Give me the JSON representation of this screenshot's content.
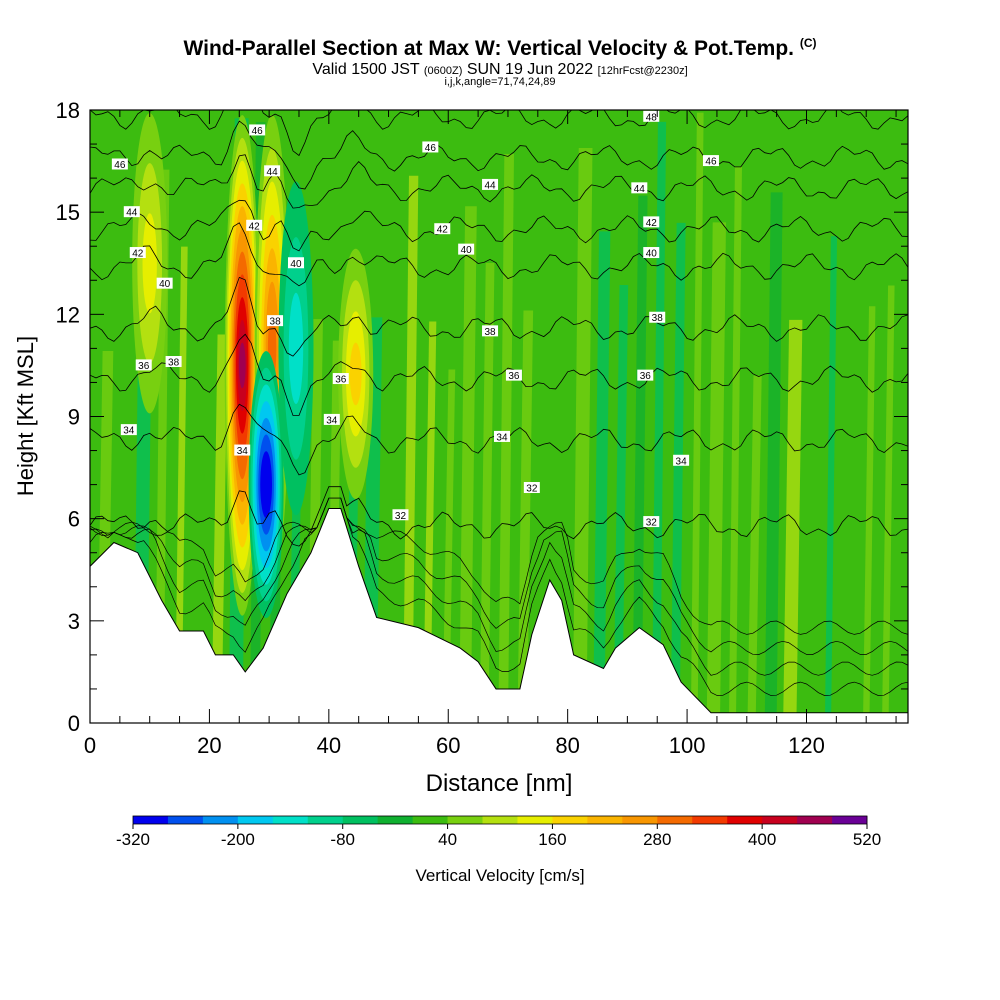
{
  "title": {
    "main": "Wind-Parallel Section at Max W: Vertical Velocity & Pot.Temp.",
    "copyright": "(C)",
    "valid_prefix": "Valid 1500 JST",
    "valid_utc": "(0600Z)",
    "valid_date": "SUN 19 Jun 2022",
    "forecast": "[12hrFcst@2230z]",
    "ijk": "i,j,k,angle=71,74,24,89"
  },
  "colorbar": {
    "label": "Vertical Velocity [cm/s]",
    "colors": [
      "#0000ee",
      "#0050ee",
      "#0090f0",
      "#00c8f0",
      "#00e0c8",
      "#00d08c",
      "#00c060",
      "#10b030",
      "#3cbc10",
      "#78d010",
      "#b4e010",
      "#e6ee00",
      "#fad200",
      "#fab400",
      "#f89600",
      "#f46a00",
      "#f23a00",
      "#e00000",
      "#c8001e",
      "#a00050",
      "#6a0096"
    ],
    "tick_labels": [
      "-320",
      "-200",
      "-80",
      "40",
      "160",
      "280",
      "400",
      "520"
    ]
  },
  "chart_data": {
    "type": "heatmap",
    "title": "Wind-Parallel Section at Max W: Vertical Velocity & Pot.Temp.",
    "xlabel": "Distance [nm]",
    "ylabel": "Height [Kft MSL]",
    "xlim": [
      0,
      137
    ],
    "ylim": [
      0,
      18
    ],
    "x_ticks": [
      0,
      20,
      40,
      60,
      80,
      100,
      120
    ],
    "y_ticks": [
      0,
      3,
      6,
      9,
      12,
      15,
      18
    ],
    "color_scale": {
      "min": -320,
      "max": 520,
      "step": 40,
      "units": "cm/s"
    },
    "terrain": [
      {
        "x": 0,
        "y": 4.6
      },
      {
        "x": 4,
        "y": 5.3
      },
      {
        "x": 8,
        "y": 5.0
      },
      {
        "x": 12,
        "y": 3.6
      },
      {
        "x": 15,
        "y": 2.7
      },
      {
        "x": 19,
        "y": 2.7
      },
      {
        "x": 21,
        "y": 2.0
      },
      {
        "x": 24,
        "y": 2.0
      },
      {
        "x": 26,
        "y": 1.5
      },
      {
        "x": 29,
        "y": 2.2
      },
      {
        "x": 33,
        "y": 3.8
      },
      {
        "x": 37,
        "y": 5.0
      },
      {
        "x": 40,
        "y": 6.3
      },
      {
        "x": 42,
        "y": 6.3
      },
      {
        "x": 45,
        "y": 4.6
      },
      {
        "x": 48,
        "y": 3.1
      },
      {
        "x": 55,
        "y": 2.8
      },
      {
        "x": 62,
        "y": 2.2
      },
      {
        "x": 65,
        "y": 1.8
      },
      {
        "x": 68,
        "y": 1.0
      },
      {
        "x": 72,
        "y": 1.0
      },
      {
        "x": 74,
        "y": 2.6
      },
      {
        "x": 77,
        "y": 4.2
      },
      {
        "x": 79,
        "y": 3.6
      },
      {
        "x": 81,
        "y": 2.0
      },
      {
        "x": 86,
        "y": 1.6
      },
      {
        "x": 88,
        "y": 2.2
      },
      {
        "x": 92,
        "y": 2.8
      },
      {
        "x": 96,
        "y": 2.3
      },
      {
        "x": 99,
        "y": 1.2
      },
      {
        "x": 104,
        "y": 0.3
      },
      {
        "x": 137,
        "y": 0.3
      }
    ],
    "updrafts": [
      {
        "x": 25.5,
        "y_bottom": 3.0,
        "y_top": 18.0,
        "peak_w": 420
      },
      {
        "x": 30.5,
        "y_bottom": 4.0,
        "y_top": 18.0,
        "peak_w": 280
      },
      {
        "x": 44.5,
        "y_bottom": 6.5,
        "y_top": 14.0,
        "peak_w": 150
      },
      {
        "x": 10,
        "y_bottom": 9.0,
        "y_top": 18.0,
        "peak_w": 100
      }
    ],
    "downdrafts": [
      {
        "x": 29.5,
        "y_bottom": 3.0,
        "y_top": 11.0,
        "peak_w": -300
      },
      {
        "x": 34.5,
        "y_bottom": 6.0,
        "y_top": 16.0,
        "peak_w": -130
      }
    ],
    "pot_temp_contours": {
      "units": "C",
      "levels": [
        {
          "theta": "32",
          "height": 5.8
        },
        {
          "theta": "34",
          "height": 8.3
        },
        {
          "theta": "36",
          "height": 10.1
        },
        {
          "theta": "38",
          "height": 11.6
        },
        {
          "theta": "40",
          "height": 13.4
        },
        {
          "theta": "42",
          "height": 14.5
        },
        {
          "theta": "44",
          "height": 15.7
        },
        {
          "theta": "46",
          "height": 16.6
        },
        {
          "theta": "48",
          "height": 17.8
        }
      ],
      "labels": [
        {
          "text": "46",
          "x": 5,
          "y": 16.4
        },
        {
          "text": "44",
          "x": 7,
          "y": 15.0
        },
        {
          "text": "42",
          "x": 8,
          "y": 13.8
        },
        {
          "text": "40",
          "x": 12.5,
          "y": 12.9
        },
        {
          "text": "38",
          "x": 14,
          "y": 10.6
        },
        {
          "text": "36",
          "x": 9,
          "y": 10.5
        },
        {
          "text": "34",
          "x": 6.5,
          "y": 8.6
        },
        {
          "text": "46",
          "x": 28,
          "y": 17.4
        },
        {
          "text": "44",
          "x": 30.5,
          "y": 16.2
        },
        {
          "text": "42",
          "x": 27.5,
          "y": 14.6
        },
        {
          "text": "40",
          "x": 34.5,
          "y": 13.5
        },
        {
          "text": "38",
          "x": 31,
          "y": 11.8
        },
        {
          "text": "36",
          "x": 42,
          "y": 10.1
        },
        {
          "text": "34",
          "x": 40.5,
          "y": 8.9
        },
        {
          "text": "34",
          "x": 25.5,
          "y": 8.0
        },
        {
          "text": "46",
          "x": 57,
          "y": 16.9
        },
        {
          "text": "44",
          "x": 67,
          "y": 15.8
        },
        {
          "text": "42",
          "x": 59,
          "y": 14.5
        },
        {
          "text": "40",
          "x": 63,
          "y": 13.9
        },
        {
          "text": "38",
          "x": 67,
          "y": 11.5
        },
        {
          "text": "36",
          "x": 71,
          "y": 10.2
        },
        {
          "text": "34",
          "x": 69,
          "y": 8.4
        },
        {
          "text": "32",
          "x": 74,
          "y": 6.9
        },
        {
          "text": "32",
          "x": 52,
          "y": 6.1
        },
        {
          "text": "48",
          "x": 94,
          "y": 17.8
        },
        {
          "text": "46",
          "x": 104,
          "y": 16.5
        },
        {
          "text": "44",
          "x": 92,
          "y": 15.7
        },
        {
          "text": "42",
          "x": 94,
          "y": 14.7
        },
        {
          "text": "40",
          "x": 94,
          "y": 13.8
        },
        {
          "text": "38",
          "x": 95,
          "y": 11.9
        },
        {
          "text": "36",
          "x": 93,
          "y": 10.2
        },
        {
          "text": "34",
          "x": 99,
          "y": 7.7
        },
        {
          "text": "32",
          "x": 94,
          "y": 5.9
        }
      ]
    }
  }
}
